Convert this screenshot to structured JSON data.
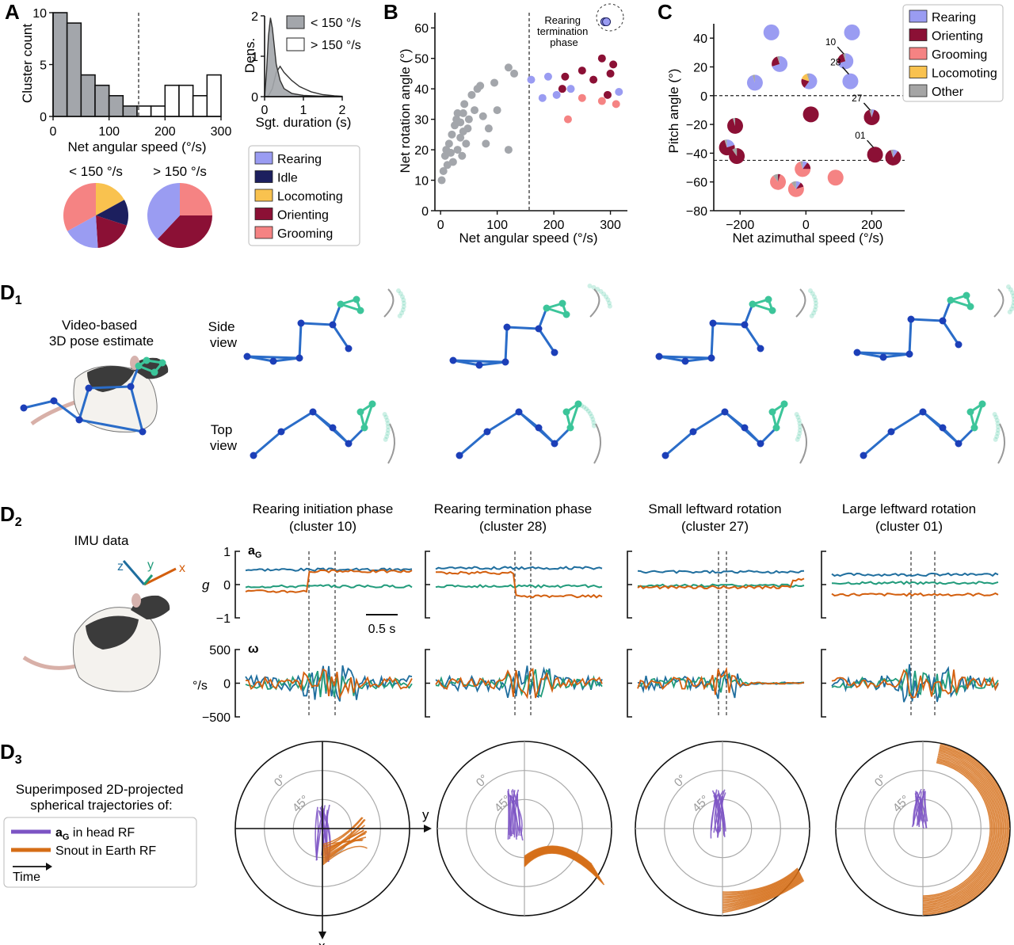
{
  "colors": {
    "rearing": "#9a9cf2",
    "idle": "#1c1f5e",
    "locomoting": "#f9c24f",
    "orienting": "#8b1035",
    "grooming": "#f58383",
    "other": "#a5a5a5",
    "acc_x": "#d35f0e",
    "acc_y": "#219b7b",
    "acc_z": "#1f6e9e",
    "lowspeed": "#a3a6ab",
    "skeleton": "#2a6cc8",
    "head": "#3cc59a",
    "purple": "#7c54c4",
    "orange": "#d56d16"
  },
  "panels": {
    "A": "A",
    "B": "B",
    "C": "C",
    "D1_letter": "D",
    "D1_sub": "1",
    "D2_letter": "D",
    "D2_sub": "2",
    "D3_letter": "D",
    "D3_sub": "3"
  },
  "chart_data": [
    {
      "id": "A_hist",
      "type": "bar",
      "xlabel": "Net angular speed (°/s)",
      "ylabel": "Cluster count",
      "xlim": [
        0,
        300
      ],
      "ylim": [
        0,
        10
      ],
      "xticks": [
        "0",
        "100",
        "200",
        "300"
      ],
      "yticks": [
        "0",
        "5",
        "10"
      ],
      "bin_edges": [
        0,
        25,
        50,
        75,
        100,
        125,
        150,
        175,
        200,
        225,
        250,
        275,
        300
      ],
      "counts": [
        10,
        9,
        4,
        3,
        2,
        1,
        1,
        1,
        3,
        3,
        2,
        4
      ],
      "threshold": 150
    },
    {
      "id": "A_density",
      "type": "area",
      "xlabel": "Sgt. duration (s)",
      "ylabel": "Dens.",
      "xlim": [
        0,
        2
      ],
      "ylim": [
        0,
        2
      ],
      "xticks": [
        "0",
        "1",
        "2"
      ],
      "yticks": [
        "0",
        "1",
        "2"
      ],
      "series": [
        {
          "name": "< 150 °/s",
          "x": [
            0,
            0.05,
            0.1,
            0.15,
            0.2,
            0.3,
            0.4,
            0.5,
            0.7,
            1.0,
            1.5,
            2.0
          ],
          "y": [
            0,
            0.6,
            1.5,
            1.95,
            1.7,
            0.8,
            0.4,
            0.2,
            0.08,
            0.03,
            0.01,
            0
          ]
        },
        {
          "name": "> 150 °/s",
          "x": [
            0,
            0.1,
            0.2,
            0.3,
            0.4,
            0.5,
            0.7,
            0.9,
            1.2,
            1.5,
            1.8,
            2.0
          ],
          "y": [
            0,
            0.02,
            0.2,
            0.6,
            0.75,
            0.6,
            0.4,
            0.25,
            0.12,
            0.05,
            0.02,
            0.01
          ]
        }
      ]
    },
    {
      "id": "A_pies",
      "type": "pie",
      "labels": [
        "Rearing",
        "Idle",
        "Locomoting",
        "Orienting",
        "Grooming"
      ],
      "pies": [
        {
          "title": "< 150 °/s",
          "values": [
            18,
            13,
            17,
            19,
            33
          ]
        },
        {
          "title": "> 150 °/s",
          "values": [
            38,
            0,
            0,
            37,
            25
          ]
        }
      ],
      "legend": [
        "Rearing",
        "Idle",
        "Locomoting",
        "Orienting",
        "Grooming"
      ]
    },
    {
      "id": "B",
      "type": "scatter",
      "xlabel": "Net angular speed (°/s)",
      "ylabel": "Net rotation angle (°)",
      "xlim": [
        -10,
        330
      ],
      "ylim": [
        0,
        65
      ],
      "xticks": [
        "0",
        "100",
        "200",
        "300"
      ],
      "yticks": [
        "0",
        "10",
        "20",
        "30",
        "40",
        "50",
        "60"
      ],
      "threshold": 150,
      "annotation": "Rearing termination phase",
      "annotation_lines": [
        "Rearing",
        "termination",
        "phase"
      ],
      "series": [
        {
          "category": "low",
          "points": [
            [
              2,
              10
            ],
            [
              5,
              13
            ],
            [
              8,
              18
            ],
            [
              10,
              20
            ],
            [
              12,
              15
            ],
            [
              15,
              22
            ],
            [
              18,
              19
            ],
            [
              20,
              25
            ],
            [
              22,
              16
            ],
            [
              25,
              28
            ],
            [
              28,
              30
            ],
            [
              30,
              32
            ],
            [
              30,
              20
            ],
            [
              35,
              24
            ],
            [
              35,
              29
            ],
            [
              38,
              18
            ],
            [
              40,
              26
            ],
            [
              40,
              32
            ],
            [
              42,
              35
            ],
            [
              45,
              22
            ],
            [
              48,
              27
            ],
            [
              50,
              30
            ],
            [
              55,
              38
            ],
            [
              60,
              33
            ],
            [
              65,
              40
            ],
            [
              70,
              41
            ],
            [
              75,
              31
            ],
            [
              80,
              22
            ],
            [
              85,
              27
            ],
            [
              95,
              42
            ],
            [
              100,
              33
            ],
            [
              120,
              20
            ],
            [
              120,
              47
            ],
            [
              130,
              45
            ]
          ]
        },
        {
          "category": "rearing",
          "points": [
            [
              160,
              43
            ],
            [
              180,
              37
            ],
            [
              190,
              44
            ],
            [
              205,
              38
            ],
            [
              230,
              40
            ],
            [
              290,
              62
            ],
            [
              293,
              62
            ],
            [
              315,
              39
            ]
          ]
        },
        {
          "category": "orienting",
          "points": [
            [
              215,
              40
            ],
            [
              220,
              44
            ],
            [
              250,
              46
            ],
            [
              270,
              43
            ],
            [
              285,
              50
            ],
            [
              295,
              38
            ],
            [
              300,
              45
            ],
            [
              305,
              48
            ]
          ]
        },
        {
          "category": "grooming",
          "points": [
            [
              225,
              30
            ],
            [
              250,
              37
            ],
            [
              285,
              36
            ],
            [
              310,
              35
            ]
          ]
        }
      ]
    },
    {
      "id": "C",
      "type": "scatter",
      "xlabel": "Net azimuthal speed (°/s)",
      "ylabel": "Pitch angle (°)",
      "xlim": [
        -280,
        300
      ],
      "ylim": [
        -80,
        50
      ],
      "xticks": [
        "−200",
        "0",
        "200"
      ],
      "yticks": [
        "−80",
        "−60",
        "−40",
        "−20",
        "0",
        "20",
        "40"
      ],
      "hlines": [
        0,
        -45
      ],
      "legend": [
        "Rearing",
        "Orienting",
        "Grooming",
        "Locomoting",
        "Other"
      ],
      "pies": [
        {
          "x": -105,
          "y": 44,
          "r": [
            100,
            0,
            0,
            0,
            0
          ]
        },
        {
          "x": 140,
          "y": 44,
          "r": [
            100,
            0,
            0,
            0,
            0
          ]
        },
        {
          "x": -155,
          "y": 9,
          "r": [
            95,
            0,
            0,
            0,
            5
          ]
        },
        {
          "x": -80,
          "y": 22,
          "r": [
            70,
            25,
            0,
            0,
            5
          ]
        },
        {
          "x": 10,
          "y": 10,
          "r": [
            60,
            20,
            0,
            15,
            5
          ],
          "label": ""
        },
        {
          "x": 120,
          "y": 24,
          "r": [
            70,
            25,
            0,
            0,
            5
          ],
          "label": "10"
        },
        {
          "x": 135,
          "y": 10,
          "r": [
            100,
            0,
            0,
            0,
            0
          ],
          "label": "28"
        },
        {
          "x": 15,
          "y": -13,
          "r": [
            0,
            100,
            0,
            0,
            0
          ]
        },
        {
          "x": -215,
          "y": -21,
          "r": [
            0,
            95,
            0,
            0,
            5
          ]
        },
        {
          "x": 200,
          "y": -15,
          "r": [
            5,
            90,
            0,
            0,
            5
          ],
          "label": "27"
        },
        {
          "x": -240,
          "y": -36,
          "r": [
            20,
            75,
            0,
            0,
            5
          ]
        },
        {
          "x": -210,
          "y": -42,
          "r": [
            0,
            90,
            0,
            0,
            10
          ]
        },
        {
          "x": 210,
          "y": -41,
          "r": [
            0,
            100,
            0,
            0,
            0
          ],
          "label": "01"
        },
        {
          "x": 265,
          "y": -43,
          "r": [
            10,
            85,
            0,
            0,
            5
          ]
        },
        {
          "x": -85,
          "y": -60,
          "r": [
            0,
            5,
            85,
            0,
            10
          ]
        },
        {
          "x": -30,
          "y": -65,
          "r": [
            10,
            10,
            70,
            0,
            10
          ]
        },
        {
          "x": -10,
          "y": -51,
          "r": [
            10,
            15,
            70,
            0,
            5
          ]
        },
        {
          "x": 90,
          "y": -57,
          "r": [
            0,
            0,
            100,
            0,
            0
          ]
        }
      ]
    },
    {
      "id": "D2",
      "type": "line",
      "acc_label": "a",
      "acc_sub": "G",
      "gyro_label": "ω",
      "acc_unit": "g",
      "gyro_unit": "°/s",
      "acc_yticks": [
        "1",
        "0",
        "−1"
      ],
      "gyro_yticks": [
        "500",
        "0",
        "−500"
      ],
      "scalebar": "0.5 s",
      "clusters": [
        {
          "title": "Rearing initiation phase",
          "subtitle": "(cluster 10)"
        },
        {
          "title": "Rearing termination phase",
          "subtitle": "(cluster 28)"
        },
        {
          "title": "Small leftward rotation",
          "subtitle": "(cluster 27)"
        },
        {
          "title": "Large leftward rotation",
          "subtitle": "(cluster 01)"
        }
      ]
    }
  ],
  "d1": {
    "caption_line1": "Video-based",
    "caption_line2": "3D pose estimate",
    "side_line1": "Side",
    "side_line2": "view",
    "top_line1": "Top",
    "top_line2": "view"
  },
  "d2": {
    "caption": "IMU data",
    "axis_z": "z",
    "axis_y": "y",
    "axis_x": "x"
  },
  "d3": {
    "caption_line1": "Superimposed 2D-projected",
    "caption_line2": "spherical trajectories of:",
    "legend1_bold": "a",
    "legend1_sub": "G",
    "legend1_rest": " in head RF",
    "legend2": "Snout in Earth RF",
    "legend3": "Time",
    "ring0": "0°",
    "ring45": "45°",
    "axis_y": "y",
    "axis_x": "x"
  }
}
